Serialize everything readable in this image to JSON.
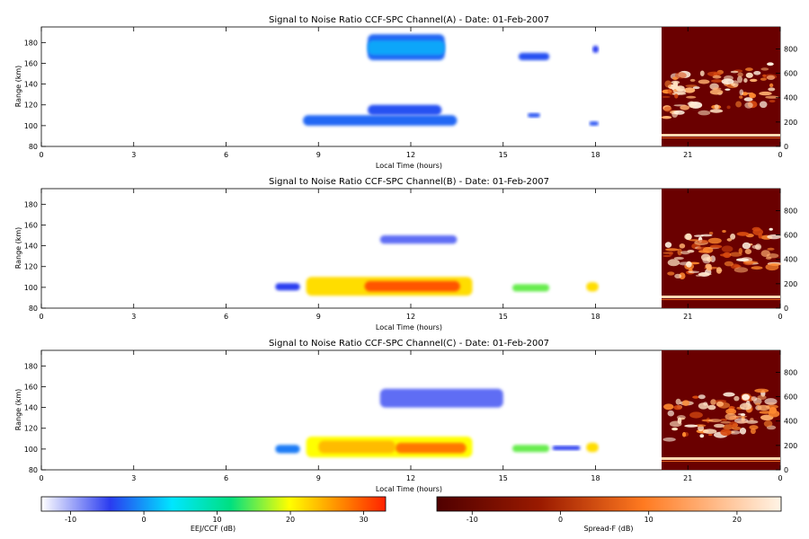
{
  "colors": {
    "ejj_scale": [
      "#ffffff",
      "#2a3cf0",
      "#00e6ff",
      "#ffff00",
      "#ff2200"
    ],
    "spreadf_scale": [
      "#6a0000",
      "#c03000",
      "#ff7a20",
      "#ffe6c8"
    ]
  },
  "chart_data": [
    {
      "type": "heatmap",
      "title": "Signal to Noise Ratio CCF-SPC Channel(A) - Date: 01-Feb-2007",
      "xlabel": "Local Time (hours)",
      "ylabel": "Range (km)",
      "xlim": [
        0,
        24
      ],
      "ylim": [
        80,
        195
      ],
      "xticks": [
        "0",
        "3",
        "6",
        "9",
        "12",
        "15",
        "18",
        "21",
        "0"
      ],
      "yticks": [
        "80",
        "100",
        "120",
        "140",
        "160",
        "180"
      ],
      "right_yticks": [
        "0",
        "200",
        "400",
        "600",
        "800"
      ],
      "right_ylim": [
        0,
        980
      ],
      "regions": [
        {
          "t0": 10.6,
          "t1": 13.1,
          "r0": 163,
          "r1": 188,
          "snr": -4
        },
        {
          "t0": 10.6,
          "t1": 13.1,
          "r0": 168,
          "r1": 182,
          "snr": -1
        },
        {
          "t0": 15.5,
          "t1": 16.5,
          "r0": 163,
          "r1": 170,
          "snr": -5
        },
        {
          "t0": 17.9,
          "t1": 18.1,
          "r0": 170,
          "r1": 177,
          "snr": -6
        },
        {
          "t0": 8.5,
          "t1": 13.5,
          "r0": 100,
          "r1": 110,
          "snr": -4
        },
        {
          "t0": 10.6,
          "t1": 13.0,
          "r0": 110,
          "r1": 120,
          "snr": -5
        },
        {
          "t0": 15.8,
          "t1": 16.2,
          "r0": 108,
          "r1": 112,
          "snr": -5
        },
        {
          "t0": 17.8,
          "t1": 18.1,
          "r0": 100,
          "r1": 104,
          "snr": -5
        }
      ]
    },
    {
      "type": "heatmap",
      "title": "Signal to Noise Ratio CCF-SPC Channel(B) - Date: 01-Feb-2007",
      "xlabel": "Local Time (hours)",
      "ylabel": "Range (km)",
      "xlim": [
        0,
        24
      ],
      "ylim": [
        80,
        195
      ],
      "xticks": [
        "0",
        "3",
        "6",
        "9",
        "12",
        "15",
        "18",
        "21",
        "0"
      ],
      "yticks": [
        "80",
        "100",
        "120",
        "140",
        "160",
        "180"
      ],
      "right_yticks": [
        "0",
        "200",
        "400",
        "600",
        "800"
      ],
      "right_ylim": [
        0,
        980
      ],
      "regions": [
        {
          "t0": 7.6,
          "t1": 8.4,
          "r0": 97,
          "r1": 104,
          "snr": -6
        },
        {
          "t0": 8.6,
          "t1": 14.0,
          "r0": 92,
          "r1": 110,
          "snr": 22
        },
        {
          "t0": 10.5,
          "t1": 13.6,
          "r0": 96,
          "r1": 106,
          "snr": 30
        },
        {
          "t0": 15.3,
          "t1": 16.5,
          "r0": 96,
          "r1": 103,
          "snr": 14
        },
        {
          "t0": 17.7,
          "t1": 18.1,
          "r0": 96,
          "r1": 105,
          "snr": 22
        },
        {
          "t0": 11.0,
          "t1": 13.5,
          "r0": 142,
          "r1": 150,
          "snr": -8
        }
      ]
    },
    {
      "type": "heatmap",
      "title": "Signal to Noise Ratio CCF-SPC Channel(C) - Date: 01-Feb-2007",
      "xlabel": "Local Time (hours)",
      "ylabel": "Range (km)",
      "xlim": [
        0,
        24
      ],
      "ylim": [
        80,
        195
      ],
      "xticks": [
        "0",
        "3",
        "6",
        "9",
        "12",
        "15",
        "18",
        "21",
        "0"
      ],
      "yticks": [
        "80",
        "100",
        "120",
        "140",
        "160",
        "180"
      ],
      "right_yticks": [
        "0",
        "200",
        "400",
        "600",
        "800"
      ],
      "right_ylim": [
        0,
        980
      ],
      "regions": [
        {
          "t0": 7.6,
          "t1": 8.4,
          "r0": 96,
          "r1": 104,
          "snr": -3
        },
        {
          "t0": 8.6,
          "t1": 14.0,
          "r0": 92,
          "r1": 112,
          "snr": 20
        },
        {
          "t0": 9.0,
          "t1": 11.5,
          "r0": 96,
          "r1": 108,
          "snr": 24
        },
        {
          "t0": 11.5,
          "t1": 13.8,
          "r0": 96,
          "r1": 106,
          "snr": 28
        },
        {
          "t0": 15.3,
          "t1": 16.5,
          "r0": 97,
          "r1": 104,
          "snr": 14
        },
        {
          "t0": 16.6,
          "t1": 17.5,
          "r0": 99,
          "r1": 103,
          "snr": -6
        },
        {
          "t0": 17.7,
          "t1": 18.1,
          "r0": 97,
          "r1": 106,
          "snr": 22
        },
        {
          "t0": 11.0,
          "t1": 15.0,
          "r0": 140,
          "r1": 158,
          "snr": -8
        }
      ]
    }
  ],
  "colorbars": [
    {
      "label": "EEJ/CCF (dB)",
      "ticks": [
        "-10",
        "0",
        "10",
        "20",
        "30"
      ],
      "range": [
        -14,
        33
      ]
    },
    {
      "label": "Spread-F (dB)",
      "ticks": [
        "-10",
        "0",
        "10",
        "20"
      ],
      "range": [
        -14,
        25
      ]
    }
  ]
}
